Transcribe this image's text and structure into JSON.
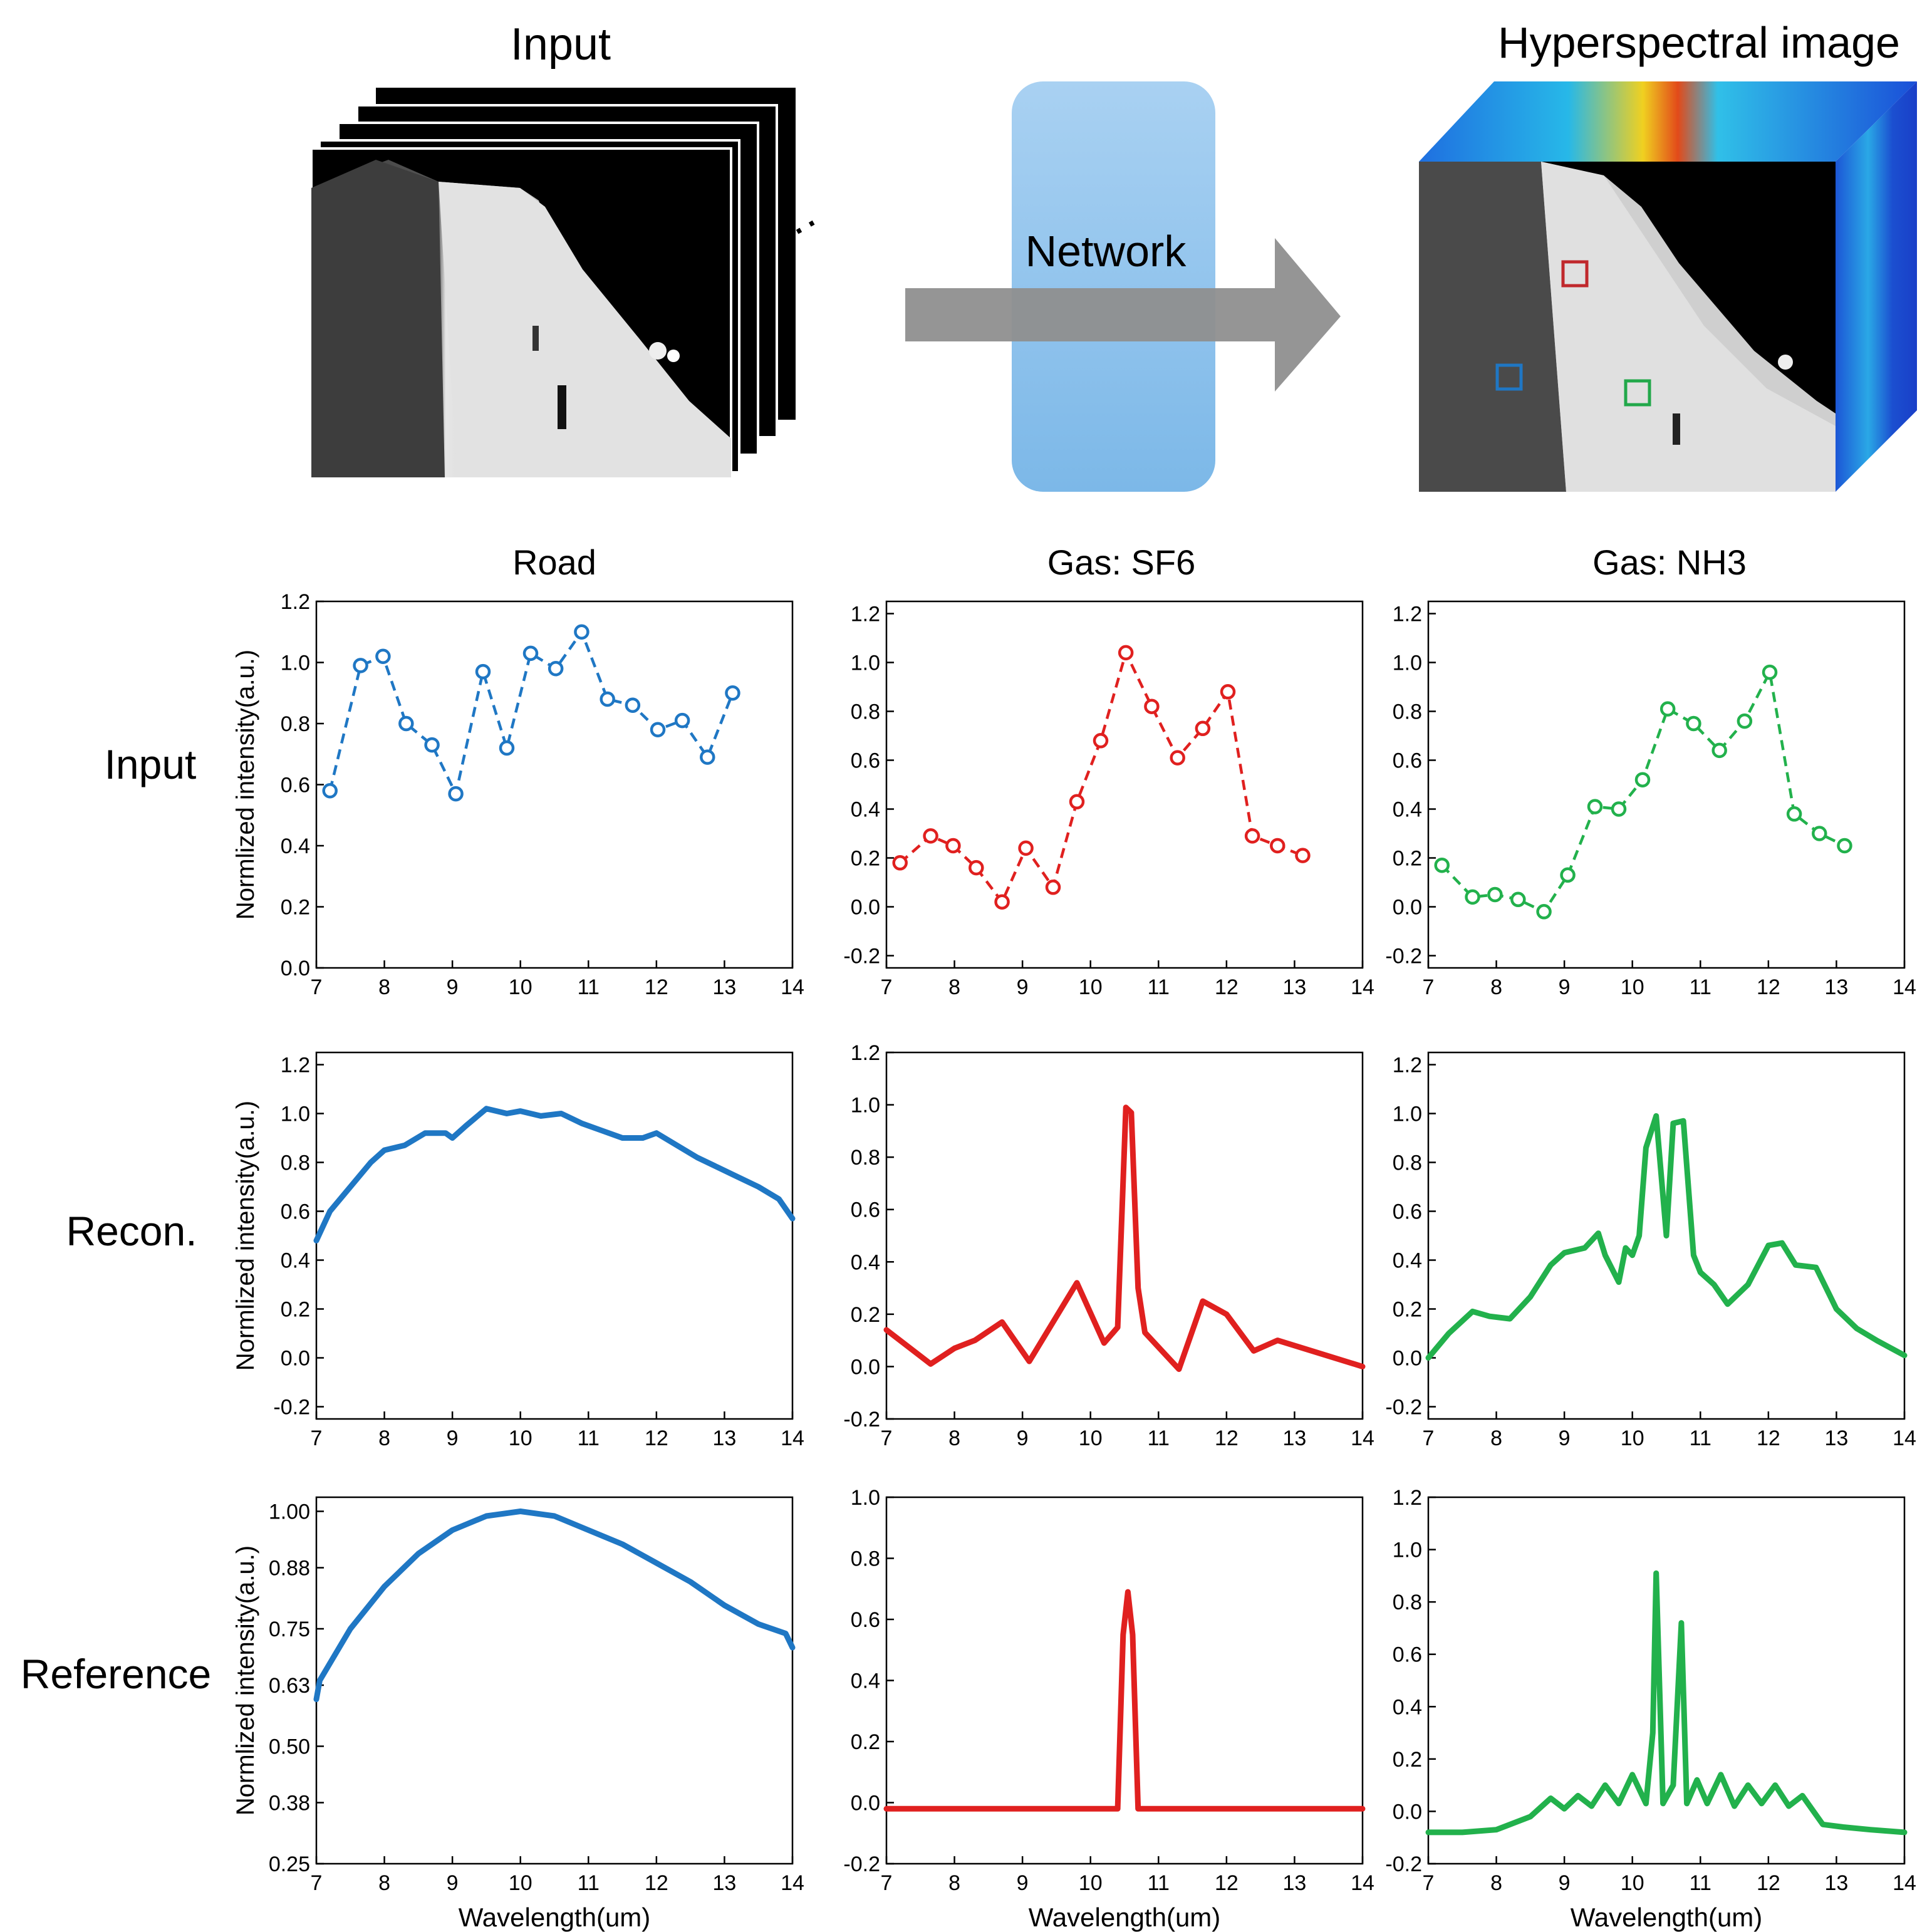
{
  "diagram": {
    "input_title": "Input",
    "network_label": "Network",
    "output_title": "Hyperspectral image",
    "ellipsis": "···",
    "roi_colors": [
      "#c0282c",
      "#1f77c4",
      "#22a84a"
    ]
  },
  "columns": [
    "Road",
    "Gas: SF6",
    "Gas: NH3"
  ],
  "rows": [
    "Input",
    "Recon.",
    "Reference"
  ],
  "axis": {
    "ylabel": "Normlized intensity(a.u.)",
    "xlabel": "Wavelength(um)"
  },
  "colors": {
    "road": "#1f77c4",
    "sf6": "#e0201f",
    "nh3": "#22b14c"
  },
  "chart_data": [
    {
      "type": "line",
      "row": "Input",
      "column": "Road",
      "style": "dashed-markers",
      "color": "#1f77c4",
      "xlim": [
        7,
        14
      ],
      "ylim": [
        0,
        1.2
      ],
      "xticks": [
        "7",
        "8",
        "9",
        "10",
        "11",
        "12",
        "13",
        "14"
      ],
      "yticks": [
        "0.0",
        "0.2",
        "0.4",
        "0.6",
        "0.8",
        "1.0",
        "1.2"
      ],
      "ylabel_shown": true,
      "xlabel_shown": false,
      "x": [
        7.2,
        7.65,
        7.98,
        8.32,
        8.7,
        9.05,
        9.45,
        9.8,
        10.15,
        10.52,
        10.9,
        11.28,
        11.65,
        12.02,
        12.38,
        12.75,
        13.12
      ],
      "y": [
        0.58,
        0.99,
        1.02,
        0.8,
        0.73,
        0.57,
        0.97,
        0.72,
        1.03,
        0.98,
        1.1,
        0.88,
        0.86,
        0.78,
        0.81,
        0.69,
        0.9
      ]
    },
    {
      "type": "line",
      "row": "Input",
      "column": "Gas: SF6",
      "style": "dashed-markers",
      "color": "#e0201f",
      "xlim": [
        7,
        14
      ],
      "ylim": [
        -0.25,
        1.25
      ],
      "xticks": [
        "7",
        "8",
        "9",
        "10",
        "11",
        "12",
        "13",
        "14"
      ],
      "yticks": [
        "-0.2",
        "0.0",
        "0.2",
        "0.4",
        "0.6",
        "0.8",
        "1.0",
        "1.2"
      ],
      "ylabel_shown": false,
      "xlabel_shown": false,
      "x": [
        7.2,
        7.65,
        7.98,
        8.32,
        8.7,
        9.05,
        9.45,
        9.8,
        10.15,
        10.52,
        10.9,
        11.28,
        11.65,
        12.02,
        12.38,
        12.75,
        13.12
      ],
      "y": [
        0.18,
        0.29,
        0.25,
        0.16,
        0.02,
        0.24,
        0.08,
        0.43,
        0.68,
        1.04,
        0.82,
        0.61,
        0.73,
        0.88,
        0.29,
        0.25,
        0.21
      ]
    },
    {
      "type": "line",
      "row": "Input",
      "column": "Gas: NH3",
      "style": "dashed-markers",
      "color": "#22b14c",
      "xlim": [
        7,
        14
      ],
      "ylim": [
        -0.25,
        1.25
      ],
      "xticks": [
        "7",
        "8",
        "9",
        "10",
        "11",
        "12",
        "13",
        "14"
      ],
      "yticks": [
        "-0.2",
        "0.0",
        "0.2",
        "0.4",
        "0.6",
        "0.8",
        "1.0",
        "1.2"
      ],
      "ylabel_shown": false,
      "xlabel_shown": false,
      "x": [
        7.2,
        7.65,
        7.98,
        8.32,
        8.7,
        9.05,
        9.45,
        9.8,
        10.15,
        10.52,
        10.9,
        11.28,
        11.65,
        12.02,
        12.38,
        12.75,
        13.12
      ],
      "y": [
        0.17,
        0.04,
        0.05,
        0.03,
        -0.02,
        0.13,
        0.41,
        0.4,
        0.52,
        0.81,
        0.75,
        0.64,
        0.76,
        0.96,
        0.38,
        0.3,
        0.25
      ]
    },
    {
      "type": "line",
      "row": "Recon.",
      "column": "Road",
      "style": "thick",
      "color": "#1f77c4",
      "xlim": [
        7,
        14
      ],
      "ylim": [
        -0.25,
        1.25
      ],
      "xticks": [
        "7",
        "8",
        "9",
        "10",
        "11",
        "12",
        "13",
        "14"
      ],
      "yticks": [
        "-0.2",
        "0.0",
        "0.2",
        "0.4",
        "0.6",
        "0.8",
        "1.0",
        "1.2"
      ],
      "ylabel_shown": true,
      "xlabel_shown": false,
      "x": [
        7.0,
        7.2,
        7.5,
        7.8,
        8.0,
        8.3,
        8.6,
        8.9,
        9.0,
        9.2,
        9.5,
        9.8,
        10.0,
        10.3,
        10.6,
        10.9,
        11.2,
        11.5,
        11.8,
        12.0,
        12.3,
        12.6,
        12.9,
        13.2,
        13.5,
        13.8,
        14.0
      ],
      "y": [
        0.48,
        0.6,
        0.7,
        0.8,
        0.85,
        0.87,
        0.92,
        0.92,
        0.9,
        0.95,
        1.02,
        1.0,
        1.01,
        0.99,
        1.0,
        0.96,
        0.93,
        0.9,
        0.9,
        0.92,
        0.87,
        0.82,
        0.78,
        0.74,
        0.7,
        0.65,
        0.57
      ]
    },
    {
      "type": "line",
      "row": "Recon.",
      "column": "Gas: SF6",
      "style": "thick",
      "color": "#e0201f",
      "xlim": [
        7,
        14
      ],
      "ylim": [
        -0.2,
        1.2
      ],
      "xticks": [
        "7",
        "8",
        "9",
        "10",
        "11",
        "12",
        "13",
        "14"
      ],
      "yticks": [
        "-0.2",
        "0.0",
        "0.2",
        "0.4",
        "0.6",
        "0.8",
        "1.0",
        "1.2"
      ],
      "ylabel_shown": false,
      "xlabel_shown": false,
      "x": [
        7.0,
        7.65,
        8.0,
        8.3,
        8.7,
        9.1,
        9.8,
        10.2,
        10.4,
        10.52,
        10.6,
        10.7,
        10.8,
        11.3,
        11.65,
        12.0,
        12.4,
        12.75,
        14.0
      ],
      "y": [
        0.14,
        0.01,
        0.07,
        0.1,
        0.17,
        0.02,
        0.32,
        0.09,
        0.15,
        0.99,
        0.97,
        0.3,
        0.13,
        -0.01,
        0.25,
        0.2,
        0.06,
        0.1,
        0.0
      ]
    },
    {
      "type": "line",
      "row": "Recon.",
      "column": "Gas: NH3",
      "style": "thick",
      "color": "#22b14c",
      "xlim": [
        7,
        14
      ],
      "ylim": [
        -0.25,
        1.25
      ],
      "xticks": [
        "7",
        "8",
        "9",
        "10",
        "11",
        "12",
        "13",
        "14"
      ],
      "yticks": [
        "-0.2",
        "0.0",
        "0.2",
        "0.4",
        "0.6",
        "0.8",
        "1.0",
        "1.2"
      ],
      "ylabel_shown": false,
      "xlabel_shown": false,
      "x": [
        7.0,
        7.3,
        7.65,
        7.9,
        8.2,
        8.5,
        8.8,
        9.0,
        9.3,
        9.5,
        9.6,
        9.8,
        9.9,
        10.0,
        10.1,
        10.2,
        10.35,
        10.5,
        10.6,
        10.75,
        10.9,
        11.0,
        11.2,
        11.4,
        11.7,
        12.0,
        12.2,
        12.4,
        12.7,
        13.0,
        13.3,
        13.6,
        14.0
      ],
      "y": [
        0.0,
        0.1,
        0.19,
        0.17,
        0.16,
        0.25,
        0.38,
        0.43,
        0.45,
        0.51,
        0.42,
        0.31,
        0.45,
        0.42,
        0.5,
        0.86,
        0.99,
        0.5,
        0.96,
        0.97,
        0.42,
        0.35,
        0.3,
        0.22,
        0.3,
        0.46,
        0.47,
        0.38,
        0.37,
        0.2,
        0.12,
        0.07,
        0.01
      ]
    },
    {
      "type": "line",
      "row": "Reference",
      "column": "Road",
      "style": "thick",
      "color": "#1f77c4",
      "xlim": [
        7,
        14
      ],
      "ylim": [
        0.25,
        1.03
      ],
      "xticks": [
        "7",
        "8",
        "9",
        "10",
        "11",
        "12",
        "13",
        "14"
      ],
      "yticks": [
        "0.25",
        "0.38",
        "0.50",
        "0.63",
        "0.75",
        "0.88",
        "1.00"
      ],
      "ylabel_shown": true,
      "xlabel_shown": true,
      "x": [
        7.0,
        7.05,
        7.5,
        8.0,
        8.5,
        9.0,
        9.5,
        10.0,
        10.5,
        11.0,
        11.5,
        12.0,
        12.5,
        13.0,
        13.5,
        13.9,
        14.0
      ],
      "y": [
        0.6,
        0.64,
        0.75,
        0.84,
        0.91,
        0.96,
        0.99,
        1.0,
        0.99,
        0.96,
        0.93,
        0.89,
        0.85,
        0.8,
        0.76,
        0.74,
        0.71
      ]
    },
    {
      "type": "line",
      "row": "Reference",
      "column": "Gas: SF6",
      "style": "thick",
      "color": "#e0201f",
      "xlim": [
        7,
        14
      ],
      "ylim": [
        -0.2,
        1.0
      ],
      "xticks": [
        "7",
        "8",
        "9",
        "10",
        "11",
        "12",
        "13",
        "14"
      ],
      "yticks": [
        "-0.2",
        "0.0",
        "0.2",
        "0.4",
        "0.6",
        "0.8",
        "1.0"
      ],
      "ylabel_shown": false,
      "xlabel_shown": true,
      "x": [
        7.0,
        10.4,
        10.48,
        10.55,
        10.62,
        10.7,
        14.0
      ],
      "y": [
        -0.02,
        -0.02,
        0.55,
        0.69,
        0.55,
        -0.02,
        -0.02
      ]
    },
    {
      "type": "line",
      "row": "Reference",
      "column": "Gas: NH3",
      "style": "thick",
      "color": "#22b14c",
      "xlim": [
        7,
        14
      ],
      "ylim": [
        -0.2,
        1.2
      ],
      "xticks": [
        "7",
        "8",
        "9",
        "10",
        "11",
        "12",
        "13",
        "14"
      ],
      "yticks": [
        "-0.2",
        "0.0",
        "0.2",
        "0.4",
        "0.6",
        "0.8",
        "1.0",
        "1.2"
      ],
      "ylabel_shown": false,
      "xlabel_shown": true,
      "x": [
        7.0,
        7.5,
        8.0,
        8.5,
        8.8,
        9.0,
        9.2,
        9.4,
        9.6,
        9.8,
        10.0,
        10.2,
        10.3,
        10.35,
        10.45,
        10.6,
        10.72,
        10.8,
        10.95,
        11.1,
        11.3,
        11.5,
        11.7,
        11.9,
        12.1,
        12.3,
        12.5,
        12.8,
        13.1,
        13.5,
        14.0
      ],
      "y": [
        -0.08,
        -0.08,
        -0.07,
        -0.02,
        0.05,
        0.01,
        0.06,
        0.02,
        0.1,
        0.03,
        0.14,
        0.03,
        0.3,
        0.91,
        0.03,
        0.1,
        0.72,
        0.03,
        0.12,
        0.03,
        0.14,
        0.02,
        0.1,
        0.03,
        0.1,
        0.02,
        0.06,
        -0.05,
        -0.06,
        -0.07,
        -0.08
      ]
    }
  ]
}
